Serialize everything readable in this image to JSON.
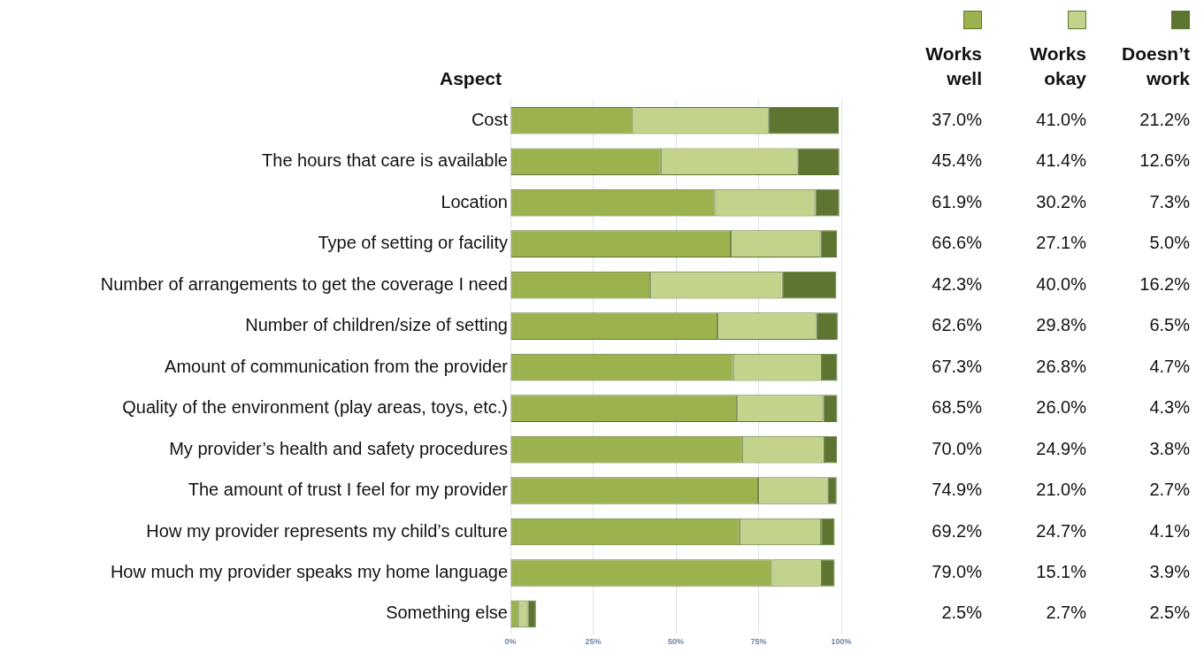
{
  "chart_data": {
    "type": "bar",
    "orientation": "horizontal",
    "stacked": true,
    "ylabel": "Aspect",
    "categories": [
      "Cost",
      "The hours that care is available",
      "Location",
      "Type of setting or facility",
      "Number of arrangements to get the coverage I need",
      "Number of children/size of setting",
      "Amount of communication from the provider",
      "Quality of the environment (play areas, toys, etc.)",
      "My provider’s health and safety procedures",
      "The amount of trust I feel for my provider",
      "How my provider represents my child’s culture",
      "How much my provider speaks my home language",
      "Something else"
    ],
    "series": [
      {
        "name": "Works well",
        "color": "#9bb24e",
        "values": [
          37.0,
          45.4,
          61.9,
          66.6,
          42.3,
          62.6,
          67.3,
          68.5,
          70.0,
          74.9,
          69.2,
          79.0,
          2.5
        ],
        "value_labels": [
          "37.0%",
          "45.4%",
          "61.9%",
          "66.6%",
          "42.3%",
          "62.6%",
          "67.3%",
          "68.5%",
          "70.0%",
          "74.9%",
          "69.2%",
          "79.0%",
          "2.5%"
        ]
      },
      {
        "name": "Works okay",
        "color": "#c3d38c",
        "values": [
          41.0,
          41.4,
          30.2,
          27.1,
          40.0,
          29.8,
          26.8,
          26.0,
          24.9,
          21.0,
          24.7,
          15.1,
          2.7
        ],
        "value_labels": [
          "41.0%",
          "41.4%",
          "30.2%",
          "27.1%",
          "40.0%",
          "29.8%",
          "26.8%",
          "26.0%",
          "24.9%",
          "21.0%",
          "24.7%",
          "15.1%",
          "2.7%"
        ]
      },
      {
        "name": "Doesn’t work",
        "color": "#5e7431",
        "values": [
          21.2,
          12.6,
          7.3,
          5.0,
          16.2,
          6.5,
          4.7,
          4.3,
          3.8,
          2.7,
          4.1,
          3.9,
          2.5
        ],
        "value_labels": [
          "21.2%",
          "12.6%",
          "7.3%",
          "5.0%",
          "16.2%",
          "6.5%",
          "4.7%",
          "4.3%",
          "3.8%",
          "2.7%",
          "4.1%",
          "3.9%",
          "2.5%"
        ]
      }
    ],
    "xlim": [
      0,
      100
    ],
    "xticks": [
      {
        "value": 0,
        "label": "0%"
      },
      {
        "value": 25,
        "label": "25%"
      },
      {
        "value": 50,
        "label": "50%"
      },
      {
        "value": 75,
        "label": "75%"
      },
      {
        "value": 100,
        "label": "100%"
      }
    ],
    "grid": "x",
    "legend": "top right"
  }
}
